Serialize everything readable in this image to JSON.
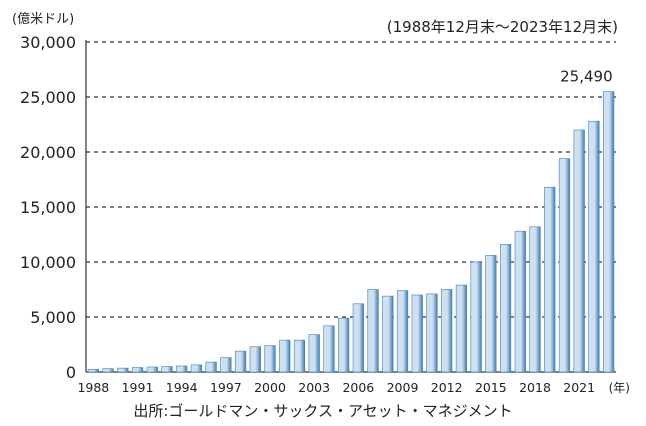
{
  "chart_data": {
    "type": "bar",
    "unit_label": "(億米ドル)",
    "period_label": "(1988年12月末～2023年12月末)",
    "source_label": "出所:ゴールドマン・サックス・アセット・マネジメント",
    "year_unit": "(年)",
    "categories": [
      "1988",
      "1989",
      "1990",
      "1991",
      "1992",
      "1993",
      "1994",
      "1995",
      "1996",
      "1997",
      "1998",
      "1999",
      "2000",
      "2001",
      "2002",
      "2003",
      "2004",
      "2005",
      "2006",
      "2007",
      "2008",
      "2009",
      "2010",
      "2011",
      "2012",
      "2013",
      "2014",
      "2015",
      "2016",
      "2017",
      "2018",
      "2019",
      "2020",
      "2021",
      "2022",
      "2023"
    ],
    "x_tick_labels": [
      "1988",
      "1991",
      "1994",
      "1997",
      "2000",
      "2003",
      "2006",
      "2009",
      "2012",
      "2015",
      "2018",
      "2021"
    ],
    "values": [
      250,
      300,
      350,
      400,
      450,
      500,
      550,
      650,
      900,
      1300,
      1900,
      2300,
      2400,
      2900,
      2900,
      3400,
      4200,
      4900,
      6200,
      7500,
      6900,
      7400,
      7000,
      7100,
      7500,
      7900,
      10000,
      10600,
      11600,
      12800,
      13200,
      16800,
      19400,
      22000,
      22800,
      25490
    ],
    "y_ticks": [
      0,
      5000,
      10000,
      15000,
      20000,
      25000,
      30000
    ],
    "y_tick_labels": [
      "0",
      "5,000",
      "10,000",
      "15,000",
      "20,000",
      "25,000",
      "30,000"
    ],
    "ylim": [
      0,
      30000
    ],
    "annotation": {
      "label": "25,490",
      "category": "2023"
    },
    "grid": "horizontal-dashed",
    "colors": {
      "bar_light": "#cfe0ef",
      "bar_dark": "#3f7fb8",
      "grid": "#333333"
    }
  }
}
